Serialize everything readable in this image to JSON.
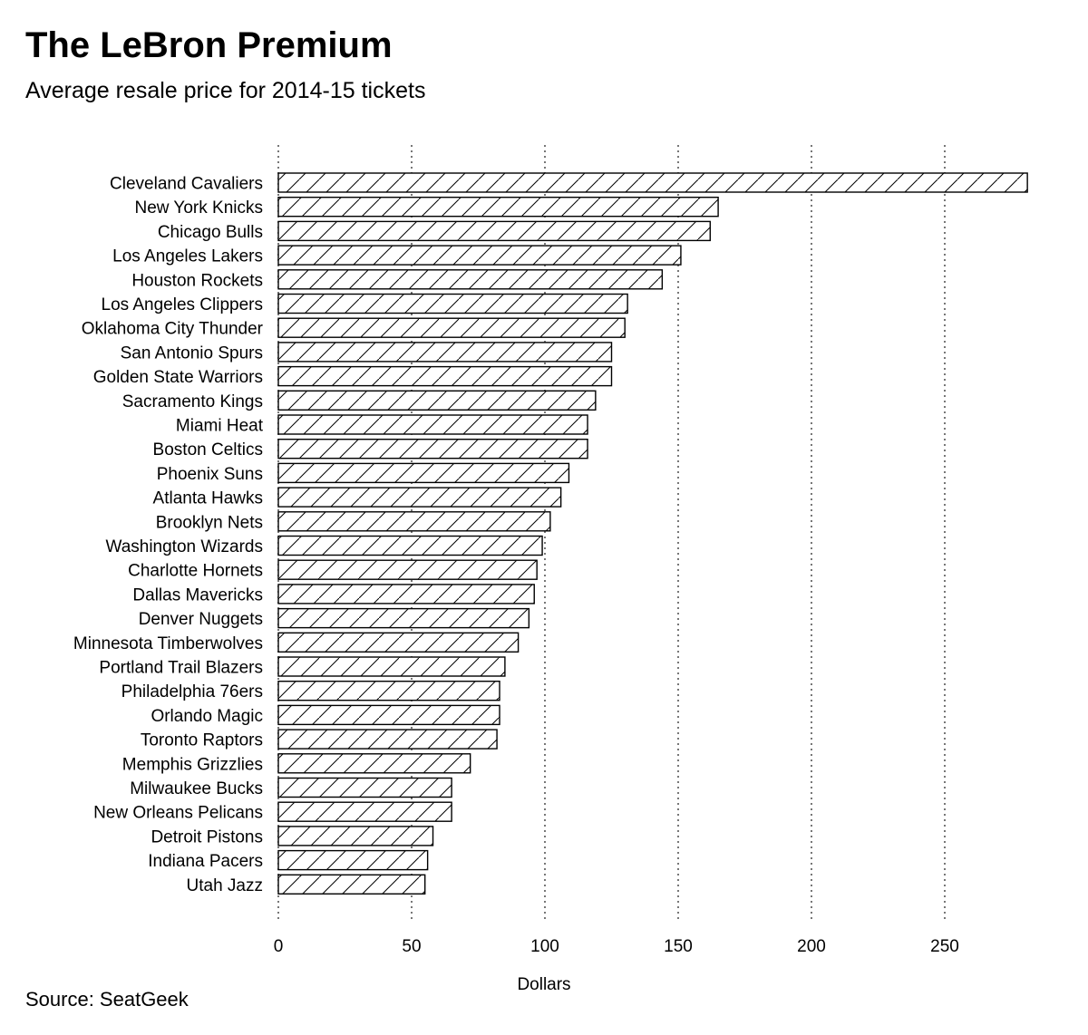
{
  "header": {
    "title": "The LeBron Premium",
    "subtitle": "Average resale price for 2014-15 tickets"
  },
  "footer": {
    "source": "Source: SeatGeek"
  },
  "chart_data": {
    "type": "bar",
    "orientation": "horizontal",
    "title": "The LeBron Premium",
    "subtitle": "Average resale price for 2014-15 tickets",
    "xlabel": "Dollars",
    "ylabel": "",
    "xlim": [
      0,
      285
    ],
    "xticks": [
      0,
      50,
      100,
      150,
      200,
      250
    ],
    "grid": "vertical dotted",
    "fill": "diagonal hatch",
    "categories": [
      "Cleveland Cavaliers",
      "New York Knicks",
      "Chicago Bulls",
      "Los Angeles Lakers",
      "Houston Rockets",
      "Los Angeles Clippers",
      "Oklahoma City Thunder",
      "San Antonio Spurs",
      "Golden State Warriors",
      "Sacramento Kings",
      "Miami Heat",
      "Boston Celtics",
      "Phoenix Suns",
      "Atlanta Hawks",
      "Brooklyn Nets",
      "Washington Wizards",
      "Charlotte Hornets",
      "Dallas Mavericks",
      "Denver Nuggets",
      "Minnesota Timberwolves",
      "Portland Trail Blazers",
      "Philadelphia 76ers",
      "Orlando Magic",
      "Toronto Raptors",
      "Memphis Grizzlies",
      "Milwaukee Bucks",
      "New Orleans Pelicans",
      "Detroit Pistons",
      "Indiana Pacers",
      "Utah Jazz"
    ],
    "values": [
      281,
      165,
      162,
      151,
      144,
      131,
      130,
      125,
      125,
      119,
      116,
      116,
      109,
      106,
      102,
      99,
      97,
      96,
      94,
      90,
      85,
      83,
      83,
      82,
      72,
      65,
      65,
      58,
      56,
      55
    ]
  }
}
